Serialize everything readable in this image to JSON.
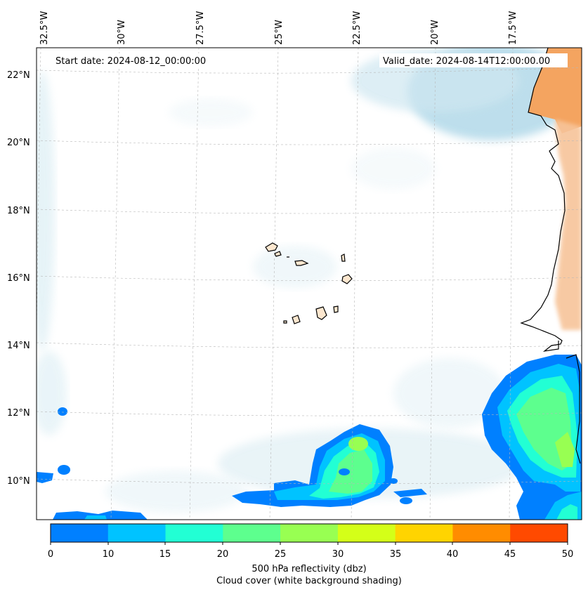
{
  "map": {
    "start_date": "Start date: 2024-08-12_00:00:00",
    "valid_date": "Valid_date: 2024-08-14T12:00:00.00",
    "lon_labels": [
      "32.5°W",
      "30°W",
      "27.5°W",
      "25°W",
      "22.5°W",
      "20°W",
      "17.5°W"
    ],
    "lat_labels": [
      "22°N",
      "20°N",
      "18°N",
      "16°N",
      "14°N",
      "12°N",
      "10°N"
    ]
  },
  "colorbar": {
    "ticks": [
      "0",
      "10",
      "15",
      "20",
      "25",
      "30",
      "35",
      "40",
      "45",
      "50"
    ],
    "colors": [
      "#0080ff",
      "#00c3ff",
      "#22ffd4",
      "#5dff8e",
      "#98ff52",
      "#d4ff18",
      "#ffd400",
      "#ff8c00",
      "#ff4a00"
    ],
    "label_line1": "500 hPa reflectivity (dbz)",
    "label_line2": "Cloud cover (white background shading)"
  },
  "palette": {
    "land_orange": "#f4a460",
    "cloud_blue": "#a8d4e6",
    "island_fill": "#fde7cf"
  }
}
